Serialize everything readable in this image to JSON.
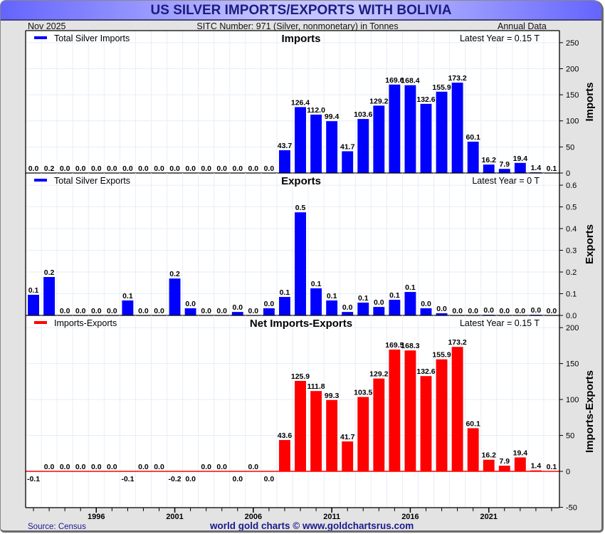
{
  "header": {
    "title": "US SILVER IMPORTS/EXPORTS WITH BOLIVIA",
    "date": "Nov  2025",
    "subtitle": "SITC Number: 971 (Silver, nonmonetary) in Tonnes",
    "frequency": "Annual Data"
  },
  "footer": {
    "source": "Source: Census",
    "credit": "world gold charts © www.goldchartsrus.com"
  },
  "colors": {
    "imports": "#0000ff",
    "exports": "#0000ff",
    "net": "#ff0000",
    "title": "#1c1c80"
  },
  "chart_data": [
    {
      "type": "bar",
      "title": "Imports",
      "legend": "Total Silver Imports",
      "legend_position": "top-left",
      "annotation": "Latest Year = 0.15 T",
      "ylabel": "Imports",
      "ylim": [
        0,
        273
      ],
      "yticks": [
        0,
        50,
        100,
        150,
        200,
        250
      ],
      "ytick_labels": [
        "0",
        "50",
        "100",
        "150",
        "200",
        "250"
      ],
      "grid": true,
      "x": [
        1992,
        1993,
        1994,
        1995,
        1996,
        1997,
        1998,
        1999,
        2000,
        2001,
        2002,
        2003,
        2004,
        2005,
        2006,
        2007,
        2008,
        2009,
        2010,
        2011,
        2012,
        2013,
        2014,
        2015,
        2016,
        2017,
        2018,
        2019,
        2020,
        2021,
        2022,
        2023,
        2024,
        2025
      ],
      "values": [
        0.0,
        0.2,
        0.0,
        0.0,
        0.0,
        0.0,
        0.0,
        0.0,
        0.0,
        0.0,
        0.0,
        0.0,
        0.0,
        0.0,
        0.0,
        0.0,
        43.7,
        126.4,
        112.0,
        99.4,
        41.7,
        103.6,
        129.2,
        169.6,
        168.4,
        132.6,
        155.9,
        173.2,
        60.1,
        16.2,
        7.9,
        19.4,
        1.4,
        0.1
      ],
      "labels": [
        "0.0",
        "0.2",
        "0.0",
        "0.0",
        "0.0",
        "0.0",
        "0.0",
        "0.0",
        "0.0",
        "0.0",
        "0.0",
        "0.0",
        "0.0",
        "0.0",
        "0.0",
        "0.0",
        "43.7",
        "126.4",
        "112.0",
        "99.4",
        "41.7",
        "103.6",
        "129.2",
        "169.6",
        "168.4",
        "132.6",
        "155.9",
        "173.2",
        "60.1",
        "16.2",
        "7.9",
        "19.4",
        "1.4",
        "0.1"
      ]
    },
    {
      "type": "bar",
      "title": "Exports",
      "legend": "Total Silver Exports",
      "legend_position": "top-left",
      "annotation": "Latest Year = 0 T",
      "ylabel": "Exports",
      "ylim": [
        0,
        0.656
      ],
      "yticks": [
        0,
        0.1,
        0.2,
        0.3,
        0.4,
        0.5,
        0.6
      ],
      "ytick_labels": [
        "0.0",
        "0.1",
        "0.2",
        "0.3",
        "0.4",
        "0.5",
        "0.6"
      ],
      "grid": true,
      "x": [
        1992,
        1993,
        1994,
        1995,
        1996,
        1997,
        1998,
        1999,
        2000,
        2001,
        2002,
        2003,
        2004,
        2005,
        2006,
        2007,
        2008,
        2009,
        2010,
        2011,
        2012,
        2013,
        2014,
        2015,
        2016,
        2017,
        2018,
        2019,
        2020,
        2021,
        2022,
        2023,
        2024,
        2025
      ],
      "values": [
        0.095,
        0.177,
        0.0,
        0.0,
        0.0,
        0.0,
        0.069,
        0.0,
        0.0,
        0.17,
        0.033,
        0.0,
        0.0,
        0.016,
        0.0,
        0.033,
        0.085,
        0.475,
        0.125,
        0.069,
        0.016,
        0.059,
        0.039,
        0.072,
        0.108,
        0.033,
        0.01,
        0.0,
        0.0,
        0.003,
        0.0,
        0.0,
        0.003,
        0.0
      ],
      "labels": [
        "0.1",
        "0.2",
        "0.0",
        "0.0",
        "0.0",
        "0.0",
        "0.1",
        "0.0",
        "0.0",
        "0.2",
        "0.0",
        "0.0",
        "0.0",
        "0.0",
        "0.0",
        "0.0",
        "0.1",
        "0.5",
        "0.1",
        "0.1",
        "0.0",
        "0.1",
        "0.0",
        "0.1",
        "0.1",
        "0.0",
        "0.0",
        "0.0",
        "0.0",
        "0.0",
        "0.0",
        "0.0",
        "0.0",
        "0.0"
      ]
    },
    {
      "type": "bar",
      "title": "Net Imports-Exports",
      "legend": "Imports-Exports",
      "legend_position": "top-left",
      "annotation": "Latest Year = 0.15 T",
      "ylabel": "Imports-Exports",
      "ylim": [
        -50.5,
        217
      ],
      "yticks": [
        -50,
        0,
        50,
        100,
        150,
        200
      ],
      "ytick_labels": [
        "-50",
        "0",
        "50",
        "100",
        "150",
        "200"
      ],
      "grid": true,
      "x": [
        1992,
        1993,
        1994,
        1995,
        1996,
        1997,
        1998,
        1999,
        2000,
        2001,
        2002,
        2003,
        2004,
        2005,
        2006,
        2007,
        2008,
        2009,
        2010,
        2011,
        2012,
        2013,
        2014,
        2015,
        2016,
        2017,
        2018,
        2019,
        2020,
        2021,
        2022,
        2023,
        2024,
        2025
      ],
      "values": [
        -0.1,
        0.0,
        0.0,
        0.0,
        0.0,
        0.0,
        -0.1,
        0.0,
        0.0,
        -0.2,
        -0.03,
        0.0,
        0.0,
        -0.02,
        0.0,
        -0.03,
        43.6,
        125.9,
        111.8,
        99.3,
        41.7,
        103.5,
        129.2,
        169.5,
        168.3,
        132.6,
        155.9,
        173.2,
        60.1,
        16.2,
        7.9,
        19.4,
        1.4,
        0.1
      ],
      "labels": [
        "-0.1",
        "0.0",
        "0.0",
        "0.0",
        "0.0",
        "0.0",
        "-0.1",
        "0.0",
        "0.0",
        "-0.2",
        "0.0",
        "0.0",
        "0.0",
        "0.0",
        "0.0",
        "0.0",
        "43.6",
        "125.9",
        "111.8",
        "99.3",
        "41.7",
        "103.5",
        "129.2",
        "169.5",
        "168.3",
        "132.6",
        "155.9",
        "173.2",
        "60.1",
        "16.2",
        "7.9",
        "19.4",
        "1.4",
        "0.1"
      ]
    }
  ],
  "xaxis": {
    "tick_labels": [
      {
        "year": 1996,
        "label": "1996"
      },
      {
        "year": 2001,
        "label": "2001"
      },
      {
        "year": 2006,
        "label": "2006"
      },
      {
        "year": 2011,
        "label": "2011"
      },
      {
        "year": 2016,
        "label": "2016"
      },
      {
        "year": 2021,
        "label": "2021"
      }
    ]
  }
}
